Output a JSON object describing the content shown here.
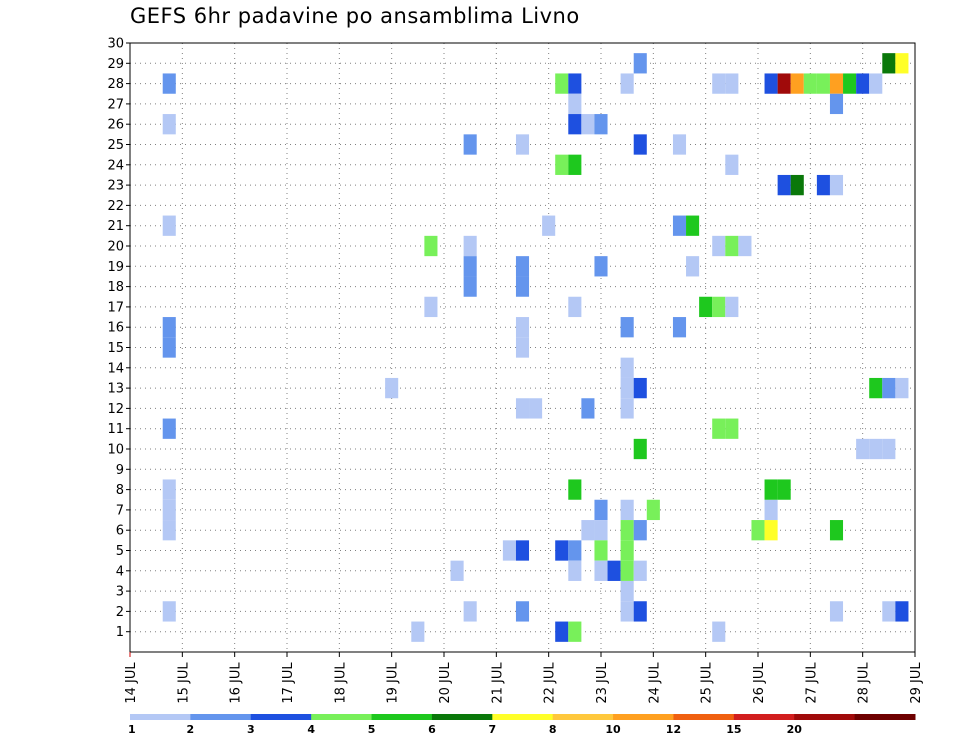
{
  "chart_data": {
    "type": "heatmap",
    "title": "GEFS 6hr padavine po ansamblima Livno",
    "xlabel": "",
    "ylabel": "",
    "x_ticks": [
      "14 JUL",
      "15 JUL",
      "16 JUL",
      "17 JUL",
      "18 JUL",
      "19 JUL",
      "20 JUL",
      "21 JUL",
      "22 JUL",
      "23 JUL",
      "24 JUL",
      "25 JUL",
      "26 JUL",
      "27 JUL",
      "28 JUL",
      "29 JUL"
    ],
    "xlim_days": [
      14,
      29
    ],
    "y_ticks": [
      1,
      2,
      3,
      4,
      5,
      6,
      7,
      8,
      9,
      10,
      11,
      12,
      13,
      14,
      15,
      16,
      17,
      18,
      19,
      20,
      21,
      22,
      23,
      24,
      25,
      26,
      27,
      28,
      29,
      30
    ],
    "ylim": [
      0,
      30
    ],
    "grid": true,
    "color_scale": {
      "levels": [
        "1",
        "2",
        "3",
        "4",
        "5",
        "6",
        "7",
        "8",
        "10",
        "12",
        "15",
        "20"
      ],
      "colors": [
        "#b4c8f5",
        "#6495ed",
        "#1e50e0",
        "#78f05a",
        "#1ec81e",
        "#0a780a",
        "#ffff28",
        "#ffc83c",
        "#ffa020",
        "#f06010",
        "#d21e1e",
        "#a00a0a",
        "#6e0000"
      ]
    },
    "cells": [
      [
        14.75,
        28,
        1
      ],
      [
        14.75,
        26,
        0
      ],
      [
        14.75,
        21,
        0
      ],
      [
        14.75,
        16,
        1
      ],
      [
        14.75,
        15,
        1
      ],
      [
        14.75,
        11,
        1
      ],
      [
        14.75,
        8,
        0
      ],
      [
        14.75,
        7,
        0
      ],
      [
        14.75,
        6,
        0
      ],
      [
        14.75,
        2,
        0
      ],
      [
        19.0,
        13,
        0
      ],
      [
        19.5,
        1,
        0
      ],
      [
        19.75,
        20,
        3
      ],
      [
        19.75,
        17,
        0
      ],
      [
        20.25,
        4,
        0
      ],
      [
        20.5,
        25,
        1
      ],
      [
        20.5,
        20,
        0
      ],
      [
        20.5,
        19,
        1
      ],
      [
        20.5,
        18,
        1
      ],
      [
        20.5,
        2,
        0
      ],
      [
        21.25,
        5,
        0
      ],
      [
        21.5,
        25,
        0
      ],
      [
        21.5,
        19,
        1
      ],
      [
        21.5,
        18,
        1
      ],
      [
        21.5,
        16,
        0
      ],
      [
        21.5,
        15,
        0
      ],
      [
        21.5,
        12,
        0
      ],
      [
        21.5,
        5,
        2
      ],
      [
        21.5,
        2,
        1
      ],
      [
        21.75,
        12,
        0
      ],
      [
        22.0,
        21,
        0
      ],
      [
        22.25,
        28,
        3
      ],
      [
        22.25,
        24,
        3
      ],
      [
        22.25,
        5,
        2
      ],
      [
        22.25,
        1,
        2
      ],
      [
        22.5,
        28,
        2
      ],
      [
        22.5,
        27,
        0
      ],
      [
        22.5,
        26,
        2
      ],
      [
        22.5,
        24,
        4
      ],
      [
        22.5,
        17,
        0
      ],
      [
        22.5,
        8,
        4
      ],
      [
        22.5,
        5,
        1
      ],
      [
        22.5,
        4,
        0
      ],
      [
        22.5,
        1,
        3
      ],
      [
        22.75,
        26,
        0
      ],
      [
        23.0,
        26,
        1
      ],
      [
        23.0,
        19,
        1
      ],
      [
        22.75,
        12,
        1
      ],
      [
        23.0,
        7,
        1
      ],
      [
        23.0,
        6,
        0
      ],
      [
        22.75,
        6,
        0
      ],
      [
        23.0,
        5,
        3
      ],
      [
        23.0,
        4,
        0
      ],
      [
        23.25,
        4,
        2
      ],
      [
        23.5,
        28,
        0
      ],
      [
        23.5,
        16,
        1
      ],
      [
        23.5,
        14,
        0
      ],
      [
        23.5,
        13,
        0
      ],
      [
        23.5,
        12,
        0
      ],
      [
        23.5,
        7,
        0
      ],
      [
        23.5,
        6,
        3
      ],
      [
        23.5,
        5,
        3
      ],
      [
        23.5,
        4,
        3
      ],
      [
        23.5,
        3,
        0
      ],
      [
        23.5,
        2,
        0
      ],
      [
        23.75,
        29,
        1
      ],
      [
        23.75,
        25,
        2
      ],
      [
        23.75,
        13,
        2
      ],
      [
        23.75,
        10,
        4
      ],
      [
        23.75,
        6,
        1
      ],
      [
        23.75,
        4,
        0
      ],
      [
        23.75,
        2,
        2
      ],
      [
        24.0,
        7,
        3
      ],
      [
        24.5,
        21,
        1
      ],
      [
        24.5,
        16,
        1
      ],
      [
        24.5,
        25,
        0
      ],
      [
        24.75,
        21,
        4
      ],
      [
        24.75,
        19,
        0
      ],
      [
        25.0,
        17,
        4
      ],
      [
        25.25,
        28,
        0
      ],
      [
        25.25,
        20,
        0
      ],
      [
        25.25,
        17,
        3
      ],
      [
        25.25,
        11,
        3
      ],
      [
        25.25,
        1,
        0
      ],
      [
        25.5,
        28,
        0
      ],
      [
        25.5,
        24,
        0
      ],
      [
        25.5,
        20,
        3
      ],
      [
        25.5,
        17,
        0
      ],
      [
        25.5,
        11,
        3
      ],
      [
        25.75,
        20,
        0
      ],
      [
        26.0,
        6,
        3
      ],
      [
        26.25,
        6,
        6
      ],
      [
        26.25,
        7,
        0
      ],
      [
        26.25,
        8,
        4
      ],
      [
        26.5,
        8,
        4
      ],
      [
        26.25,
        28,
        2
      ],
      [
        26.5,
        28,
        11
      ],
      [
        26.5,
        23,
        2
      ],
      [
        26.75,
        28,
        8
      ],
      [
        26.75,
        23,
        5
      ],
      [
        27.0,
        28,
        3
      ],
      [
        27.25,
        28,
        3
      ],
      [
        27.25,
        23,
        2
      ],
      [
        27.5,
        28,
        8
      ],
      [
        27.5,
        27,
        1
      ],
      [
        27.5,
        23,
        0
      ],
      [
        27.5,
        6,
        4
      ],
      [
        27.5,
        2,
        0
      ],
      [
        27.75,
        28,
        4
      ],
      [
        28.0,
        28,
        2
      ],
      [
        28.0,
        10,
        0
      ],
      [
        28.25,
        28,
        0
      ],
      [
        28.25,
        13,
        4
      ],
      [
        28.25,
        10,
        0
      ],
      [
        28.5,
        29,
        5
      ],
      [
        28.5,
        13,
        1
      ],
      [
        28.5,
        10,
        0
      ],
      [
        28.5,
        2,
        0
      ],
      [
        28.75,
        13,
        0
      ],
      [
        28.75,
        29,
        6
      ],
      [
        28.75,
        2,
        2
      ]
    ]
  }
}
